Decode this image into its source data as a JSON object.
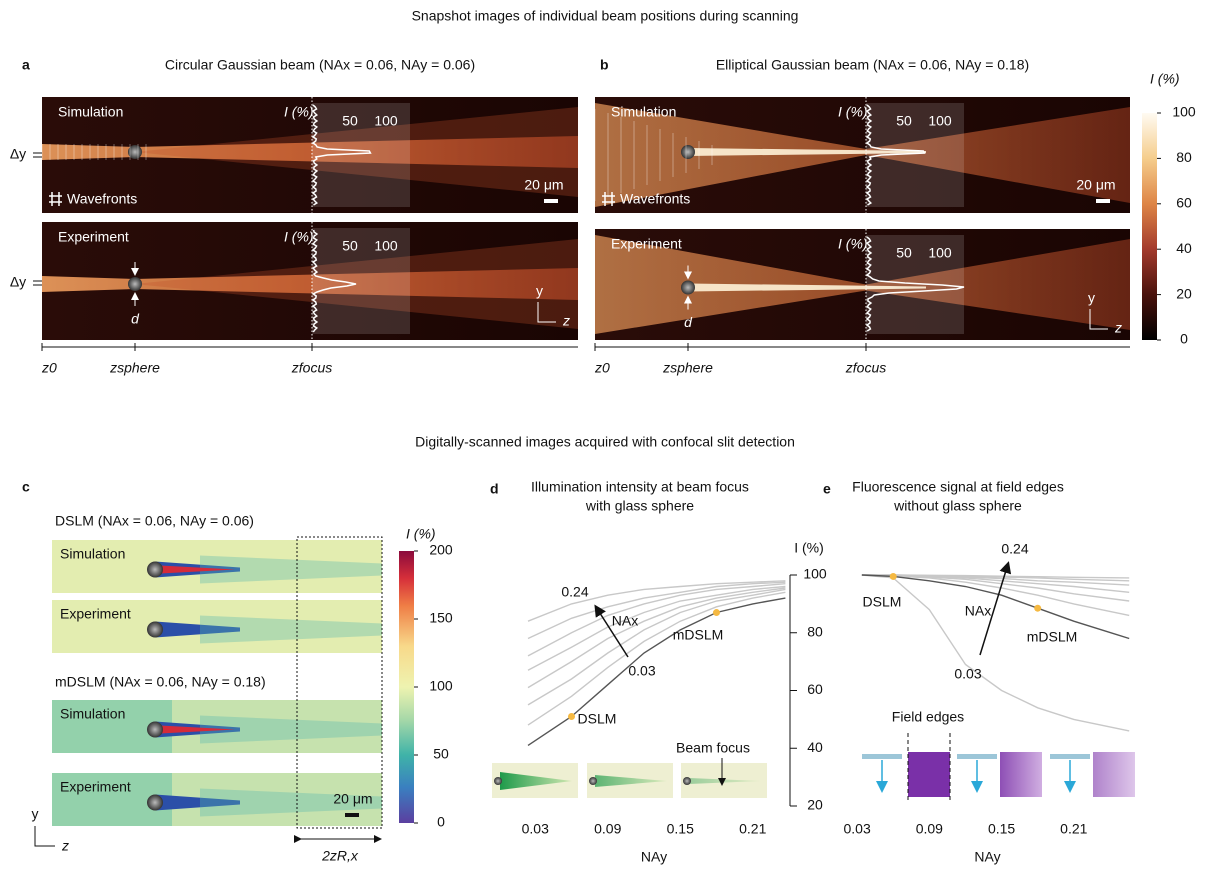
{
  "headings": {
    "top": "Snapshot images of individual beam positions during scanning",
    "bottom": "Digitally-scanned images acquired with confocal slit detection"
  },
  "panel_a": {
    "letter": "a",
    "title": "Circular Gaussian beam (NAx = 0.06, NAy = 0.06)"
  },
  "panel_b": {
    "letter": "b",
    "title": "Elliptical Gaussian beam (NAx = 0.06, NAy = 0.18)"
  },
  "snapshot_labels": {
    "simulation": "Simulation",
    "experiment": "Experiment",
    "wavefronts": "Wavefronts",
    "intensity": "I (%)",
    "profile_ticks": [
      "50",
      "100"
    ],
    "scale_bar": "20 μm",
    "dy": "Δy",
    "d": "d",
    "y": "y",
    "z": "z",
    "z0": "z0",
    "zsphere": "zsphere",
    "zfocus": "zfocus"
  },
  "colorbar_ab": {
    "label": "I (%)",
    "lim": [
      0,
      100
    ],
    "ticks": [
      0,
      20,
      40,
      60,
      80,
      100
    ]
  },
  "panel_c": {
    "letter": "c",
    "dslm": "DSLM (NAx = 0.06, NAy = 0.06)",
    "mdslm": "mDSLM (NAx = 0.06, NAy = 0.18)",
    "simulation": "Simulation",
    "experiment": "Experiment",
    "scale_bar": "20 μm",
    "y": "y",
    "z": "z",
    "range": "2zR,x"
  },
  "colorbar_c": {
    "label": "I (%)",
    "lim": [
      0,
      200
    ],
    "ticks": [
      0,
      50,
      100,
      150,
      200
    ]
  },
  "chart_data": [
    {
      "type": "line",
      "letter": "d",
      "title": [
        "Illumination intensity at beam focus",
        "with glass sphere"
      ],
      "xlabel": "NAy",
      "ylabel": "I (%)",
      "x": [
        0.024,
        0.06,
        0.09,
        0.12,
        0.15,
        0.18,
        0.21,
        0.237
      ],
      "xlim": [
        0,
        0.24
      ],
      "xticks": [
        0.03,
        0.09,
        0.15,
        0.21
      ],
      "ylim": [
        20,
        100
      ],
      "yticks": [
        20,
        40,
        60,
        80,
        100
      ],
      "series": [
        {
          "color": "#555555",
          "values": [
            41,
            51,
            62,
            73,
            81,
            87,
            90,
            92
          ]
        },
        {
          "color": "#c8c8c8",
          "values": [
            48,
            58,
            68,
            77,
            84,
            89,
            92,
            94
          ]
        },
        {
          "color": "#c8c8c8",
          "values": [
            55,
            64,
            73,
            81,
            87,
            91,
            93,
            95
          ]
        },
        {
          "color": "#c8c8c8",
          "values": [
            61,
            70,
            78,
            84,
            89,
            92,
            94,
            95.5
          ]
        },
        {
          "color": "#c8c8c8",
          "values": [
            67,
            75,
            82,
            87,
            91,
            93,
            95,
            96
          ]
        },
        {
          "color": "#c8c8c8",
          "values": [
            72,
            80,
            86,
            90,
            93,
            95,
            96,
            97
          ]
        },
        {
          "color": "#c8c8c8",
          "values": [
            78,
            85,
            89,
            92,
            94,
            96,
            97,
            97.5
          ]
        },
        {
          "color": "#c8c8c8",
          "values": [
            84,
            90,
            93,
            95,
            96,
            97,
            97.5,
            98
          ]
        }
      ],
      "highlight_series": 0,
      "highlight_indices": [
        1,
        5
      ],
      "highlight_color": "#f5b942",
      "annotations": [
        "0.24",
        "NAx",
        "0.03",
        "mDSLM",
        "DSLM",
        "Beam focus"
      ]
    },
    {
      "type": "line",
      "letter": "e",
      "title": [
        "Fluorescence signal at field edges",
        "without glass sphere"
      ],
      "xlabel": "NAy",
      "x": [
        0.034,
        0.06,
        0.09,
        0.12,
        0.15,
        0.18,
        0.21,
        0.256
      ],
      "xlim": [
        0,
        0.26
      ],
      "xticks": [
        0.03,
        0.09,
        0.15,
        0.21
      ],
      "ylim": [
        20,
        100
      ],
      "series": [
        {
          "color": "#c8c8c8",
          "values": [
            100,
            99,
            88,
            69,
            60,
            54,
            50,
            46
          ]
        },
        {
          "color": "#555555",
          "values": [
            100,
            99.5,
            98,
            96,
            93,
            88.5,
            84,
            78
          ]
        },
        {
          "color": "#c8c8c8",
          "values": [
            100,
            99.7,
            99,
            97.5,
            95.5,
            93,
            90,
            86
          ]
        },
        {
          "color": "#c8c8c8",
          "values": [
            100,
            99.8,
            99.3,
            98.5,
            97,
            95.5,
            93.5,
            91
          ]
        },
        {
          "color": "#c8c8c8",
          "values": [
            100,
            99.9,
            99.5,
            99,
            98,
            97,
            96,
            94
          ]
        },
        {
          "color": "#c8c8c8",
          "values": [
            100,
            99.9,
            99.7,
            99.3,
            98.8,
            98,
            97.5,
            96.5
          ]
        },
        {
          "color": "#c8c8c8",
          "values": [
            100,
            100,
            99.8,
            99.6,
            99.3,
            99,
            98.5,
            98
          ]
        },
        {
          "color": "#c8c8c8",
          "values": [
            100,
            100,
            99.9,
            99.8,
            99.6,
            99.4,
            99.2,
            99
          ]
        }
      ],
      "highlight_series": 1,
      "highlight_indices": [
        1,
        5
      ],
      "highlight_color": "#f5b942",
      "annotations": [
        "0.24",
        "NAx",
        "0.03",
        "DSLM",
        "mDSLM",
        "Field edges"
      ]
    }
  ]
}
